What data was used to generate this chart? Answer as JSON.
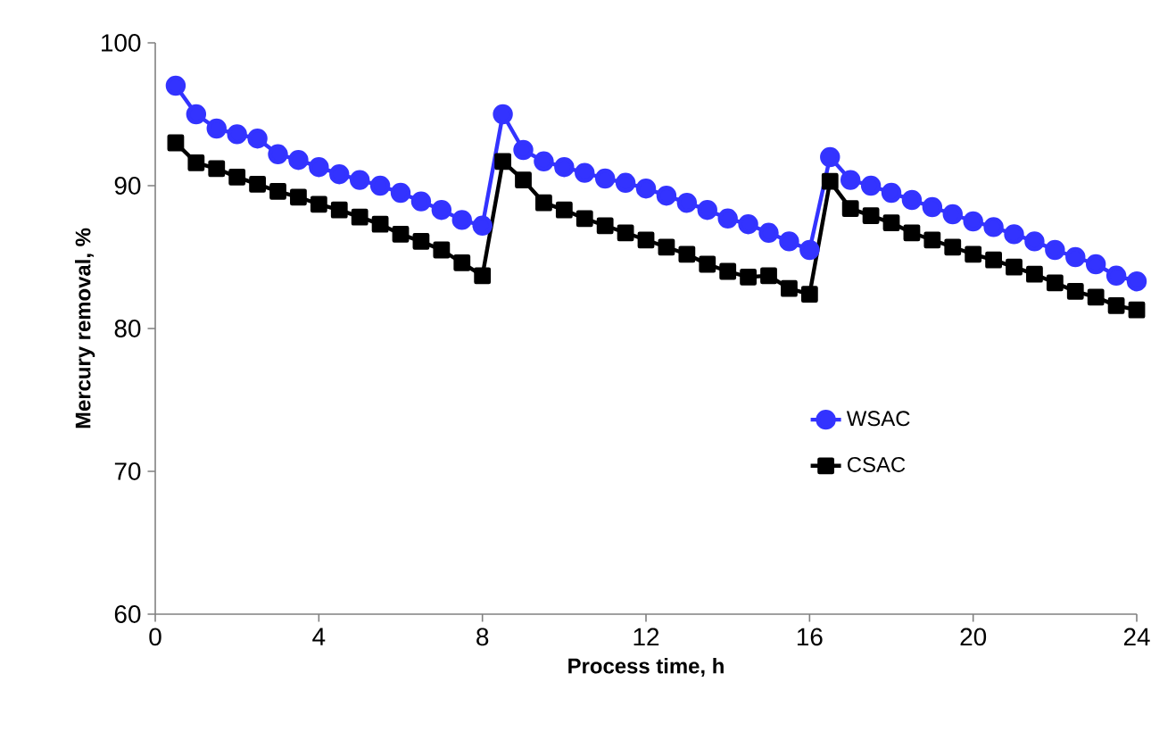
{
  "chart_data": {
    "type": "line",
    "xlabel": "Process time, h",
    "ylabel": "Mercury removal, %",
    "x": [
      0.5,
      1,
      1.5,
      2,
      2.5,
      3,
      3.5,
      4,
      4.5,
      5,
      5.5,
      6,
      6.5,
      7,
      7.5,
      8,
      8.5,
      9,
      9.5,
      10,
      10.5,
      11,
      11.5,
      12,
      12.5,
      13,
      13.5,
      14,
      14.5,
      15,
      15.5,
      16,
      16.5,
      17,
      17.5,
      18,
      18.5,
      19,
      19.5,
      20,
      20.5,
      21,
      21.5,
      22,
      22.5,
      23,
      23.5,
      24
    ],
    "series": [
      {
        "name": "WSAC",
        "color": "#3333ff",
        "marker": "circle",
        "values": [
          97,
          95,
          94,
          93.6,
          93.3,
          92.2,
          91.8,
          91.3,
          90.8,
          90.4,
          90,
          89.5,
          88.9,
          88.3,
          87.6,
          87.2,
          95,
          92.5,
          91.7,
          91.3,
          90.9,
          90.5,
          90.2,
          89.8,
          89.3,
          88.8,
          88.3,
          87.7,
          87.3,
          86.7,
          86.1,
          85.5,
          92,
          90.4,
          90,
          89.5,
          89,
          88.5,
          88,
          87.5,
          87.1,
          86.6,
          86.1,
          85.5,
          85,
          84.5,
          83.7,
          83.3
        ]
      },
      {
        "name": "CSAC",
        "color": "#000000",
        "marker": "square",
        "values": [
          93,
          91.6,
          91.2,
          90.6,
          90.1,
          89.6,
          89.2,
          88.7,
          88.3,
          87.8,
          87.3,
          86.6,
          86.1,
          85.5,
          84.6,
          83.7,
          91.7,
          90.4,
          88.8,
          88.3,
          87.7,
          87.2,
          86.7,
          86.2,
          85.7,
          85.2,
          84.5,
          84,
          83.6,
          83.7,
          82.8,
          82.4,
          90.3,
          88.4,
          87.9,
          87.4,
          86.7,
          86.2,
          85.7,
          85.2,
          84.8,
          84.3,
          83.8,
          83.2,
          82.6,
          82.2,
          81.6,
          81.3
        ]
      }
    ],
    "xlim": [
      0,
      24
    ],
    "xticks": [
      0,
      4,
      8,
      12,
      16,
      20,
      24
    ],
    "ylim": [
      60,
      100
    ],
    "yticks": [
      60,
      70,
      80,
      90,
      100
    ],
    "grid": false,
    "legend": "bottom right",
    "line_style": "solid"
  }
}
